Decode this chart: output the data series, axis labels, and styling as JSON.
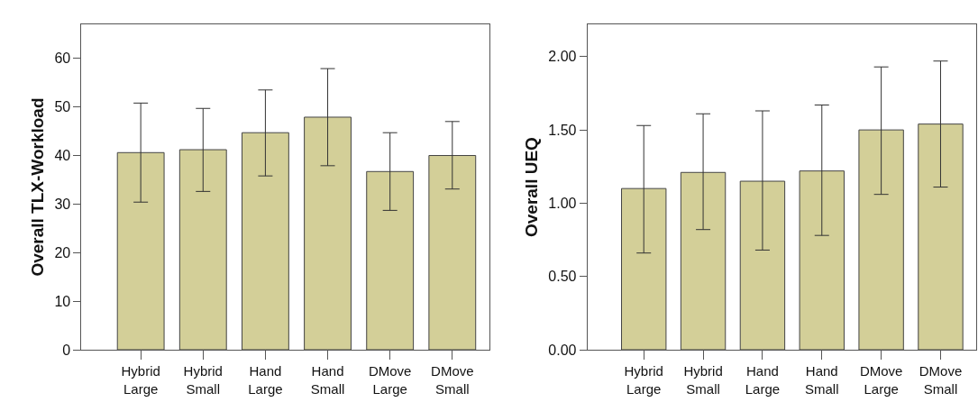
{
  "chart_data": [
    {
      "type": "bar",
      "ylabel": "Overall TLX-Workload",
      "categories": [
        "Hybrid Large",
        "Hybrid Small",
        "Hand Large",
        "Hand Small",
        "DMove Large",
        "DMove Small"
      ],
      "values": [
        40.6,
        41.2,
        44.7,
        47.9,
        36.7,
        40.0
      ],
      "errors": [
        [
          30.4,
          50.8
        ],
        [
          32.6,
          49.7
        ],
        [
          35.8,
          53.5
        ],
        [
          37.9,
          57.9
        ],
        [
          28.7,
          44.7
        ],
        [
          33.1,
          47.0
        ]
      ],
      "color": "#d3cf98",
      "ylim": [
        0,
        67
      ],
      "yticks": [
        0,
        10,
        20,
        30,
        40,
        50,
        60
      ]
    },
    {
      "type": "bar",
      "ylabel": "Overall UEQ",
      "categories": [
        "Hybrid Large",
        "Hybrid Small",
        "Hand Large",
        "Hand Small",
        "DMove Large",
        "DMove Small"
      ],
      "values": [
        1.1,
        1.21,
        1.15,
        1.22,
        1.5,
        1.54
      ],
      "errors": [
        [
          0.66,
          1.53
        ],
        [
          0.82,
          1.61
        ],
        [
          0.68,
          1.63
        ],
        [
          0.78,
          1.67
        ],
        [
          1.06,
          1.93
        ],
        [
          1.11,
          1.97
        ]
      ],
      "color": "#d3cf98",
      "ylim": [
        0,
        2.22
      ],
      "yticks": [
        {
          "value": 0,
          "label": "0.00"
        },
        {
          "value": 0.5,
          "label": "0.50"
        },
        {
          "value": 1,
          "label": "1.00"
        },
        {
          "value": 1.5,
          "label": "1.50"
        },
        {
          "value": 2,
          "label": "2.00"
        }
      ]
    }
  ]
}
